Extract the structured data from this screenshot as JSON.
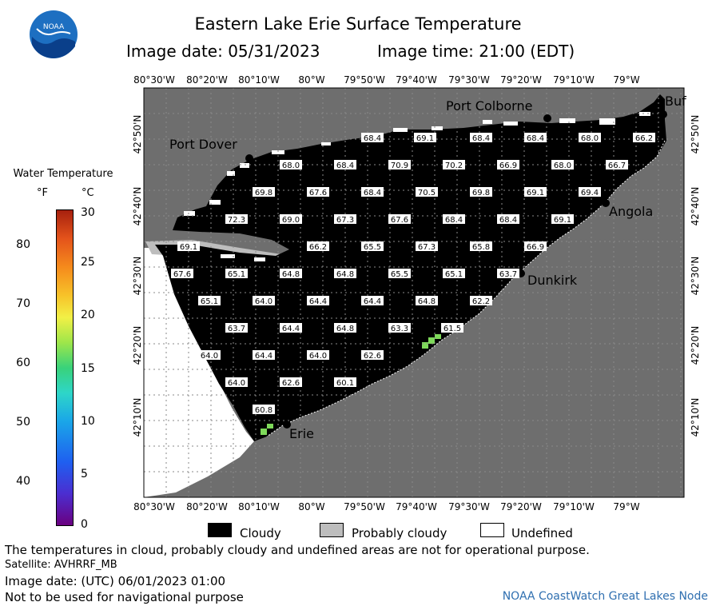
{
  "header": {
    "title": "Eastern Lake Erie Surface Temperature",
    "image_date": "Image date: 05/31/2023",
    "image_time": "Image time: 21:00 (EDT)",
    "logo_text": "NOAA"
  },
  "color_scale": {
    "title": "Water Temperature",
    "unit_f": "°F",
    "unit_c": "°C",
    "ticks_f": [
      "80",
      "70",
      "60",
      "50",
      "40"
    ],
    "ticks_c": [
      "30",
      "25",
      "20",
      "15",
      "10",
      "5",
      "0"
    ],
    "gradient_colors": [
      "#6a0080",
      "#1f5ff0",
      "#2ed6c8",
      "#39d27a",
      "#f2f046",
      "#f58a1c",
      "#a6200e"
    ]
  },
  "map": {
    "lon_labels": [
      "80°30'W",
      "80°20'W",
      "80°10'W",
      "80°W",
      "79°50'W",
      "79°40'W",
      "79°30'W",
      "79°20'W",
      "79°10'W",
      "79°W"
    ],
    "lat_labels": [
      "42°50'N",
      "42°40'N",
      "42°30'N",
      "42°20'N",
      "42°10'N"
    ],
    "cities": [
      {
        "name": "Port Colborne"
      },
      {
        "name": "Port Dover"
      },
      {
        "name": "Angola"
      },
      {
        "name": "Dunkirk"
      },
      {
        "name": "Erie"
      },
      {
        "name": "Buf"
      }
    ],
    "temperature_readings": [
      "68.4",
      "69.1",
      "68.4",
      "68.4",
      "68.0",
      "66.2",
      "68.0",
      "68.4",
      "70.9",
      "70.2",
      "66.9",
      "68.0",
      "66.7",
      "69.8",
      "67.6",
      "68.4",
      "70.5",
      "69.8",
      "69.1",
      "69.4",
      "72.3",
      "69.0",
      "67.3",
      "67.6",
      "68.4",
      "68.4",
      "69.1",
      "69.1",
      "66.2",
      "65.5",
      "67.3",
      "65.8",
      "66.9",
      "67.6",
      "65.1",
      "64.8",
      "64.8",
      "65.5",
      "65.1",
      "63.7",
      "65.1",
      "64.0",
      "64.4",
      "64.4",
      "64.8",
      "62.2",
      "63.7",
      "64.4",
      "64.8",
      "63.3",
      "61.5",
      "64.0",
      "64.4",
      "64.0",
      "62.6",
      "64.0",
      "62.6",
      "60.1",
      "60.8"
    ],
    "colors": {
      "land": "#6e6e6e",
      "cloudy": "#000000",
      "probably_cloudy": "#bdbdbd",
      "undefined": "#ffffff",
      "warm_water": "#7ed95a"
    }
  },
  "legend": {
    "cloudy": "Cloudy",
    "probably_cloudy": "Probably cloudy",
    "undefined": "Undefined"
  },
  "footer": {
    "disclaimer": "The temperatures in cloud, probably cloudy and undefined areas are not for operational purpose.",
    "satellite": "Satellite: AVHRRF_MB",
    "utc_date": "Image date: (UTC) 06/01/2023  01:00",
    "nav_warning": "Not to be used for navigational purpose",
    "credit": "NOAA CoastWatch Great Lakes Node"
  }
}
